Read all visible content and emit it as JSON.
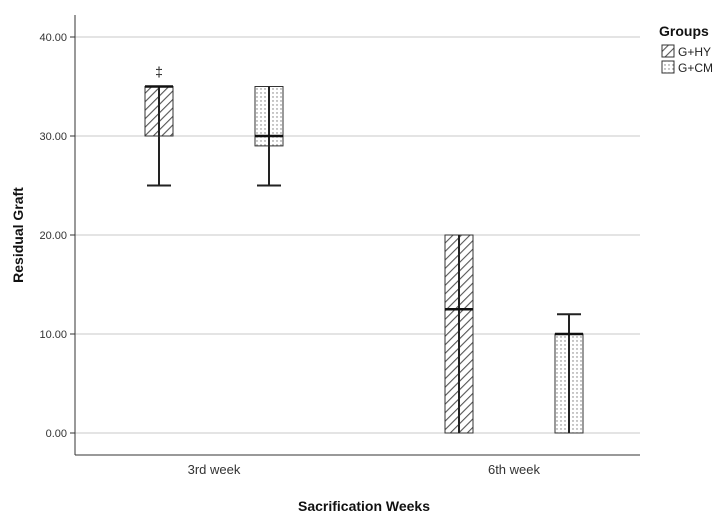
{
  "chart_data": {
    "type": "boxplot",
    "xlabel": "Sacrification Weeks",
    "ylabel": "Residual Graft",
    "categories": [
      "3rd week",
      "6th week"
    ],
    "ylim": [
      -2,
      42
    ],
    "yticks": [
      0,
      10,
      20,
      30,
      40
    ],
    "ytick_labels": [
      "0.00",
      "10.00",
      "20.00",
      "30.00",
      "40.00"
    ],
    "grid": "horizontal",
    "legend": {
      "title": "Groups",
      "placement": "top-right"
    },
    "series": [
      {
        "name": "G+HY",
        "pattern": "diagonal-hatch",
        "boxes": [
          {
            "category": "3rd week",
            "min": 25,
            "q1": 30,
            "median": 35,
            "q3": 35,
            "max": 35,
            "annotation": "‡"
          },
          {
            "category": "6th week",
            "min": 0,
            "q1": 0,
            "median": 12.5,
            "q3": 20,
            "max": 20
          }
        ]
      },
      {
        "name": "G+CM",
        "pattern": "dotted",
        "boxes": [
          {
            "category": "3rd week",
            "min": 25,
            "q1": 29,
            "median": 30,
            "q3": 35,
            "max": 35
          },
          {
            "category": "6th week",
            "min": 0,
            "q1": 0,
            "median": 10,
            "q3": 10,
            "max": 12
          }
        ]
      }
    ]
  }
}
